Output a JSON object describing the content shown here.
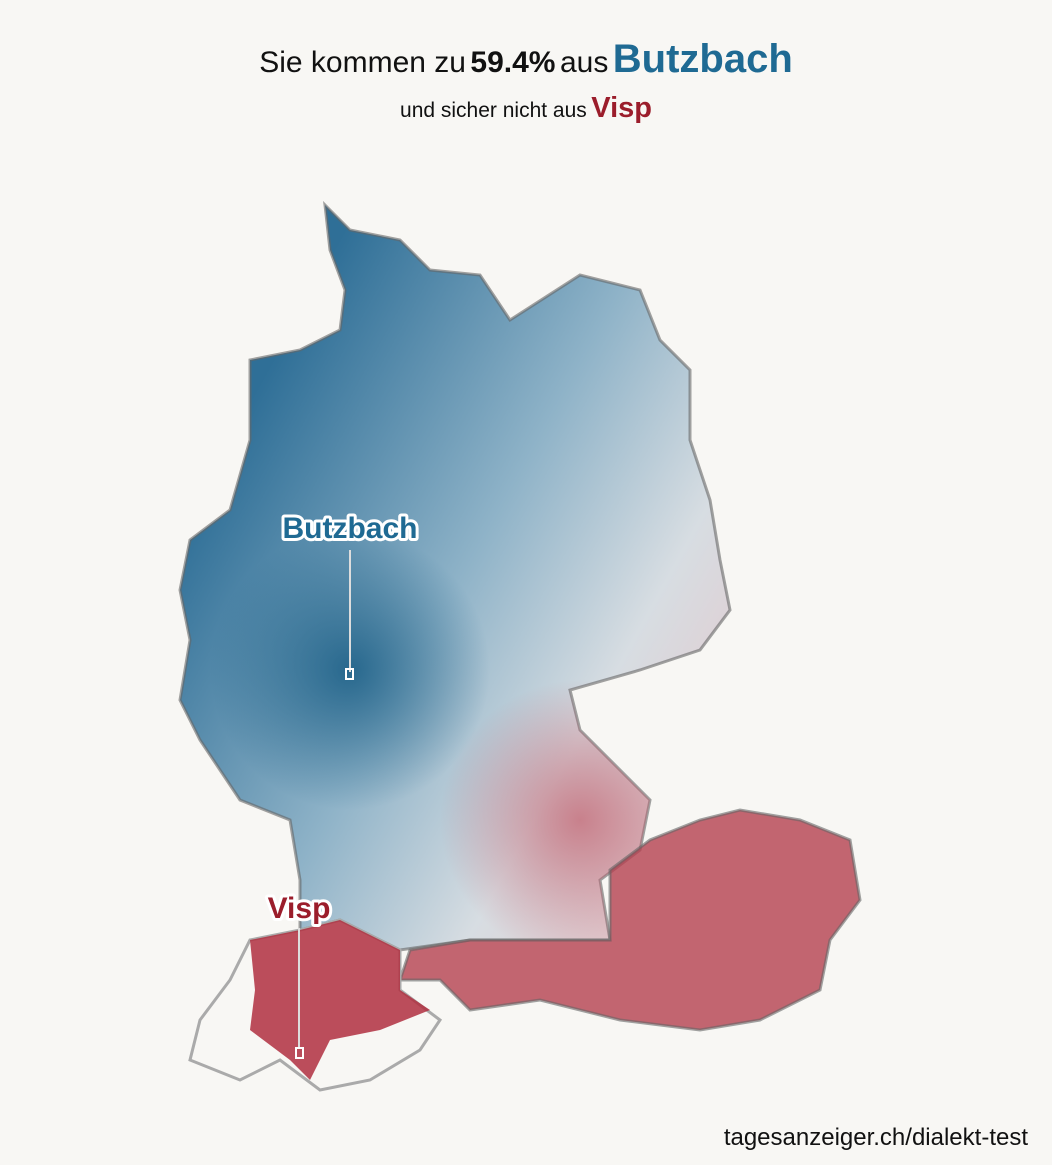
{
  "title": {
    "prefix": "Sie kommen zu",
    "percent": "59.4%",
    "middle": "aus",
    "place": "Butzbach"
  },
  "subtitle": {
    "prefix": "und sicher nicht aus",
    "place": "Visp"
  },
  "map_labels": {
    "best": "Butzbach",
    "worst": "Visp"
  },
  "source": "tagesanzeiger.ch/dialekt-test"
}
